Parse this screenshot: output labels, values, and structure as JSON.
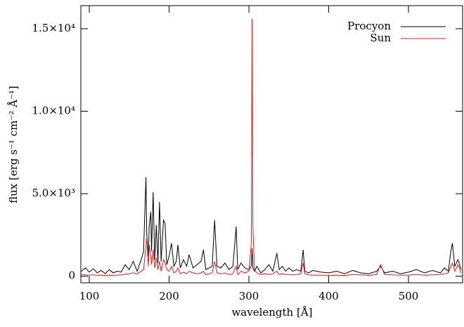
{
  "chart_data": {
    "type": "line",
    "xlabel": "wavelength [Å]",
    "ylabel": "flux [erg s⁻¹ cm⁻² Å⁻¹]",
    "x": [
      90,
      95,
      100,
      105,
      110,
      115,
      120,
      125,
      130,
      135,
      140,
      145,
      150,
      155,
      160,
      165,
      168,
      171,
      172,
      174,
      175,
      177,
      178,
      180,
      182,
      184,
      186,
      188,
      190,
      193,
      195,
      197,
      200,
      203,
      206,
      209,
      211,
      214,
      218,
      222,
      225,
      230,
      235,
      240,
      243,
      246,
      250,
      254,
      257,
      260,
      265,
      270,
      275,
      280,
      284,
      286,
      290,
      295,
      300,
      303,
      304,
      305,
      307,
      310,
      315,
      320,
      325,
      330,
      335,
      338,
      342,
      346,
      350,
      355,
      360,
      365,
      368,
      370,
      375,
      380,
      390,
      400,
      410,
      420,
      430,
      440,
      450,
      460,
      465,
      470,
      480,
      490,
      500,
      510,
      520,
      530,
      540,
      545,
      550,
      553,
      555,
      558,
      562,
      566
    ],
    "series": [
      {
        "name": "Procyon",
        "color": "#000000",
        "values": [
          300,
          500,
          250,
          450,
          200,
          350,
          150,
          400,
          200,
          300,
          250,
          700,
          400,
          900,
          300,
          1000,
          1500,
          6000,
          2500,
          1200,
          3000,
          3900,
          1500,
          5100,
          1000,
          3100,
          800,
          4500,
          900,
          3400,
          3200,
          700,
          1200,
          2000,
          600,
          900,
          1900,
          500,
          1000,
          600,
          1300,
          500,
          700,
          900,
          1600,
          400,
          500,
          600,
          3400,
          600,
          500,
          800,
          400,
          600,
          3000,
          400,
          800,
          500,
          400,
          600,
          1700,
          500,
          300,
          600,
          200,
          400,
          700,
          300,
          1400,
          400,
          600,
          300,
          500,
          300,
          400,
          300,
          1600,
          300,
          200,
          350,
          250,
          200,
          300,
          150,
          350,
          200,
          150,
          300,
          600,
          200,
          300,
          150,
          250,
          400,
          200,
          350,
          200,
          500,
          300,
          1500,
          2000,
          600,
          1000,
          400
        ]
      },
      {
        "name": "Sun",
        "color": "#e8141e",
        "values": [
          100,
          80,
          60,
          90,
          50,
          70,
          40,
          60,
          50,
          60,
          80,
          120,
          150,
          200,
          150,
          300,
          400,
          1800,
          2300,
          600,
          1900,
          1200,
          700,
          1600,
          500,
          1100,
          400,
          900,
          300,
          1000,
          800,
          400,
          300,
          600,
          200,
          300,
          500,
          150,
          250,
          150,
          300,
          200,
          150,
          200,
          300,
          100,
          150,
          200,
          900,
          200,
          150,
          200,
          100,
          150,
          600,
          100,
          300,
          200,
          300,
          2000,
          15600,
          3000,
          400,
          200,
          100,
          150,
          100,
          150,
          300,
          100,
          150,
          100,
          100,
          80,
          100,
          150,
          800,
          150,
          80,
          60,
          60,
          50,
          60,
          40,
          100,
          80,
          50,
          100,
          700,
          100,
          80,
          60,
          70,
          100,
          60,
          80,
          100,
          150,
          200,
          600,
          800,
          300,
          700,
          200
        ]
      }
    ],
    "xlim": [
      89.4,
      567.8
    ],
    "ylim": [
      -400,
      16400
    ],
    "xticks": [
      100,
      200,
      300,
      400,
      500
    ],
    "yticks": [
      0,
      {
        "value": 5000,
        "label": "5.0×10³"
      },
      {
        "value": 10000,
        "label": "1.0×10⁴"
      },
      {
        "value": 15000,
        "label": "1.5×10⁴"
      }
    ],
    "legend": "upper right"
  }
}
